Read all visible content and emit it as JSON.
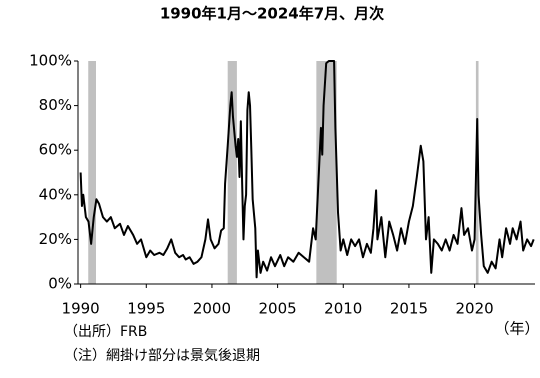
{
  "chart_data": {
    "type": "line",
    "title": "1990年1月～2024年7月、月次",
    "x_unit": "（年）",
    "source": "（出所）FRB",
    "note": "（注）網掛け部分は景気後退期",
    "xlim": [
      1989.8,
      2024.6
    ],
    "xticks": [
      1990,
      1995,
      2000,
      2005,
      2010,
      2015,
      2020
    ],
    "ylim": [
      0,
      100
    ],
    "yticks": [
      {
        "value": 0,
        "label": "0%"
      },
      {
        "value": 20,
        "label": "20%"
      },
      {
        "value": 40,
        "label": "40%"
      },
      {
        "value": 60,
        "label": "60%"
      },
      {
        "value": 80,
        "label": "80%"
      },
      {
        "value": 100,
        "label": "100%"
      }
    ],
    "shaded_ranges": [
      [
        1990.58,
        1991.17
      ],
      [
        2001.2,
        2001.9
      ],
      [
        2007.95,
        2009.5
      ],
      [
        2020.1,
        2020.3
      ]
    ],
    "shade_color": "#c0c0c0",
    "grid": false,
    "x": [
      1990.0,
      1990.1,
      1990.2,
      1990.4,
      1990.6,
      1990.8,
      1991.0,
      1991.2,
      1991.4,
      1991.7,
      1992.0,
      1992.3,
      1992.6,
      1993.0,
      1993.3,
      1993.6,
      1994.0,
      1994.3,
      1994.6,
      1995.0,
      1995.3,
      1995.6,
      1996.0,
      1996.3,
      1996.6,
      1996.9,
      1997.2,
      1997.5,
      1997.8,
      1998.0,
      1998.3,
      1998.6,
      1998.9,
      1999.2,
      1999.5,
      1999.7,
      1999.9,
      2000.2,
      2000.5,
      2000.7,
      2000.9,
      2001.0,
      2001.2,
      2001.4,
      2001.5,
      2001.6,
      2001.8,
      2001.9,
      2002.0,
      2002.1,
      2002.2,
      2002.3,
      2002.4,
      2002.5,
      2002.6,
      2002.7,
      2002.8,
      2002.9,
      2003.0,
      2003.1,
      2003.3,
      2003.4,
      2003.5,
      2003.7,
      2003.9,
      2004.2,
      2004.5,
      2004.8,
      2005.2,
      2005.5,
      2005.8,
      2006.2,
      2006.6,
      2007.0,
      2007.4,
      2007.7,
      2007.9,
      2008.1,
      2008.3,
      2008.4,
      2008.5,
      2008.7,
      2008.9,
      2009.3,
      2009.4,
      2009.6,
      2009.8,
      2010.0,
      2010.3,
      2010.6,
      2010.9,
      2011.2,
      2011.5,
      2011.8,
      2012.1,
      2012.3,
      2012.5,
      2012.6,
      2012.9,
      2013.2,
      2013.5,
      2013.8,
      2014.1,
      2014.4,
      2014.7,
      2015.0,
      2015.3,
      2015.6,
      2015.9,
      2016.1,
      2016.3,
      2016.5,
      2016.7,
      2016.9,
      2017.2,
      2017.5,
      2017.8,
      2018.1,
      2018.4,
      2018.7,
      2019.0,
      2019.2,
      2019.5,
      2019.8,
      2020.0,
      2020.2,
      2020.3,
      2020.5,
      2020.7,
      2021.0,
      2021.3,
      2021.6,
      2021.9,
      2022.1,
      2022.4,
      2022.7,
      2022.9,
      2023.2,
      2023.5,
      2023.7,
      2024.0,
      2024.3,
      2024.5
    ],
    "series": [
      {
        "color": "#000000",
        "values": [
          50,
          35,
          40,
          30,
          28,
          18,
          30,
          38,
          36,
          30,
          28,
          30,
          25,
          27,
          22,
          26,
          22,
          18,
          20,
          12,
          15,
          13,
          14,
          13,
          16,
          20,
          14,
          12,
          13,
          11,
          12,
          9,
          10,
          12,
          20,
          29,
          20,
          16,
          18,
          24,
          25,
          45,
          62,
          80,
          86,
          75,
          62,
          57,
          65,
          48,
          73,
          45,
          20,
          35,
          40,
          78,
          86,
          80,
          60,
          38,
          25,
          3,
          15,
          5,
          10,
          6,
          12,
          8,
          13,
          8,
          12,
          10,
          14,
          12,
          10,
          25,
          20,
          45,
          70,
          58,
          80,
          99,
          100,
          100,
          70,
          32,
          15,
          20,
          13,
          20,
          17,
          20,
          12,
          18,
          14,
          25,
          42,
          20,
          30,
          12,
          28,
          22,
          15,
          25,
          18,
          28,
          35,
          48,
          62,
          55,
          20,
          30,
          5,
          20,
          18,
          15,
          20,
          15,
          22,
          18,
          34,
          22,
          25,
          15,
          20,
          74,
          40,
          22,
          8,
          5,
          10,
          7,
          20,
          12,
          25,
          18,
          25,
          20,
          28,
          15,
          20,
          17,
          20
        ]
      }
    ]
  }
}
